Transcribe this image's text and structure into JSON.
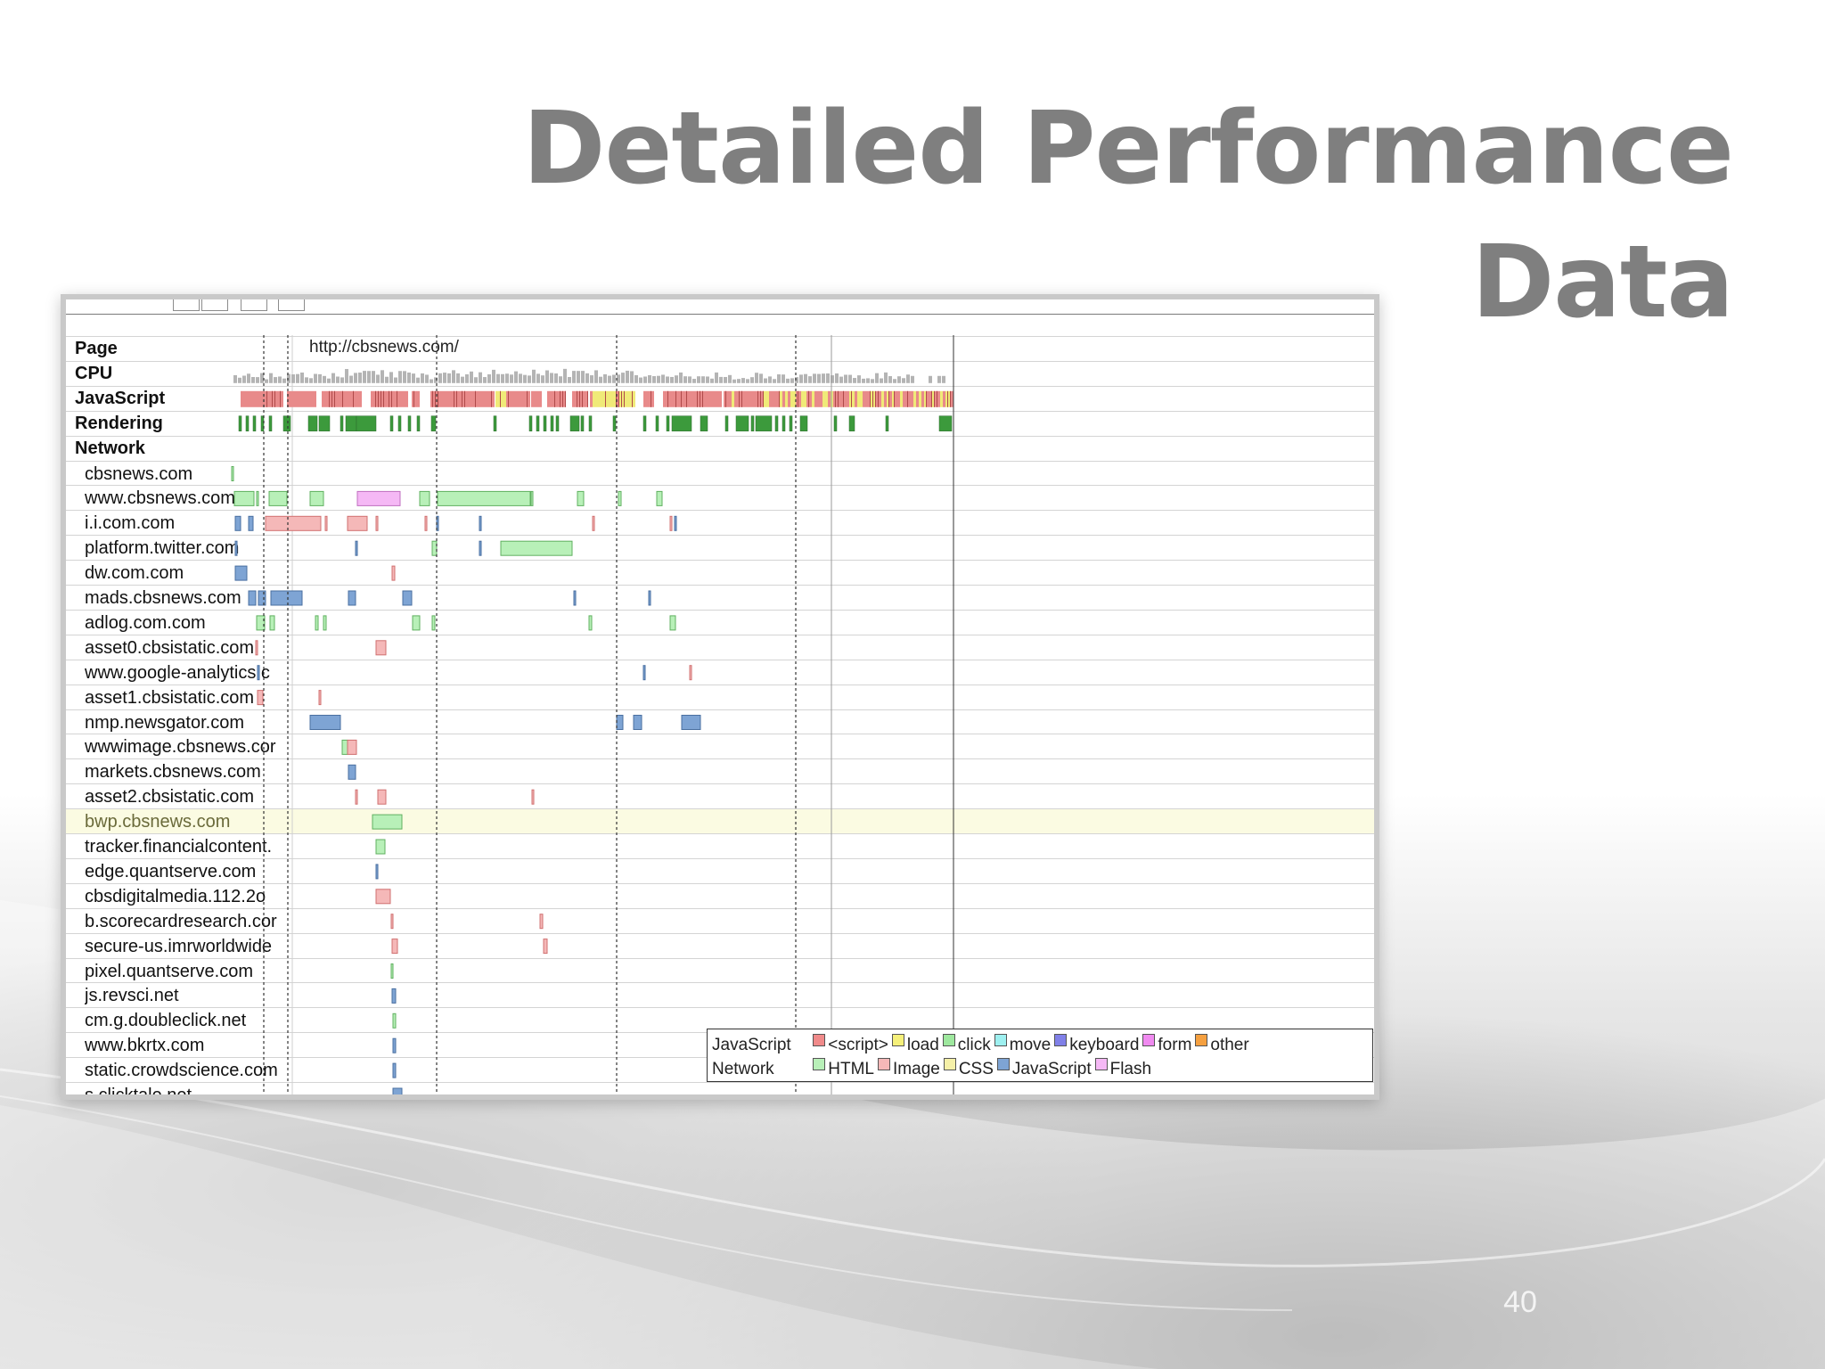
{
  "slide": {
    "title_line1": "Detailed Performance",
    "title_line2": "Data",
    "number": "40"
  },
  "timeline": {
    "page_url": "http://cbsnews.com/",
    "top_rows": [
      "Page",
      "CPU",
      "JavaScript",
      "Rendering",
      "Network"
    ],
    "hosts": [
      {
        "name": "cbsnews.com",
        "bars": [
          {
            "t": 260,
            "d": 2,
            "k": "html"
          }
        ]
      },
      {
        "name": "www.cbsnews.com",
        "bars": [
          {
            "t": 263,
            "d": 22,
            "k": "html"
          },
          {
            "t": 288,
            "d": 2,
            "k": "html"
          },
          {
            "t": 302,
            "d": 20,
            "k": "html"
          },
          {
            "t": 348,
            "d": 15,
            "k": "html"
          },
          {
            "t": 401,
            "d": 48,
            "k": "flash"
          },
          {
            "t": 471,
            "d": 11,
            "k": "html"
          },
          {
            "t": 491,
            "d": 104,
            "k": "html"
          },
          {
            "t": 596,
            "d": 2,
            "k": "html"
          },
          {
            "t": 648,
            "d": 7,
            "k": "html"
          },
          {
            "t": 694,
            "d": 3,
            "k": "html"
          },
          {
            "t": 737,
            "d": 6,
            "k": "html"
          }
        ]
      },
      {
        "name": "i.i.com.com",
        "bars": [
          {
            "t": 264,
            "d": 6,
            "k": "js"
          },
          {
            "t": 279,
            "d": 5,
            "k": "js"
          },
          {
            "t": 298,
            "d": 62,
            "k": "image"
          },
          {
            "t": 365,
            "d": 2,
            "k": "image"
          },
          {
            "t": 390,
            "d": 22,
            "k": "image"
          },
          {
            "t": 422,
            "d": 2,
            "k": "image"
          },
          {
            "t": 477,
            "d": 2,
            "k": "image"
          },
          {
            "t": 490,
            "d": 2,
            "k": "js"
          },
          {
            "t": 538,
            "d": 2,
            "k": "js"
          },
          {
            "t": 665,
            "d": 2,
            "k": "image"
          },
          {
            "t": 752,
            "d": 2,
            "k": "image"
          },
          {
            "t": 757,
            "d": 2,
            "k": "js"
          }
        ]
      },
      {
        "name": "platform.twitter.com",
        "bars": [
          {
            "t": 264,
            "d": 2,
            "k": "js"
          },
          {
            "t": 399,
            "d": 2,
            "k": "js"
          },
          {
            "t": 485,
            "d": 5,
            "k": "html"
          },
          {
            "t": 538,
            "d": 2,
            "k": "js"
          },
          {
            "t": 562,
            "d": 80,
            "k": "html"
          }
        ]
      },
      {
        "name": "dw.com.com",
        "bars": [
          {
            "t": 264,
            "d": 13,
            "k": "js"
          },
          {
            "t": 440,
            "d": 3,
            "k": "image"
          }
        ]
      },
      {
        "name": "mads.cbsnews.com",
        "bars": [
          {
            "t": 279,
            "d": 8,
            "k": "js"
          },
          {
            "t": 290,
            "d": 8,
            "k": "js"
          },
          {
            "t": 304,
            "d": 35,
            "k": "js"
          },
          {
            "t": 391,
            "d": 8,
            "k": "js"
          },
          {
            "t": 452,
            "d": 10,
            "k": "js"
          },
          {
            "t": 644,
            "d": 2,
            "k": "js"
          },
          {
            "t": 728,
            "d": 2,
            "k": "js"
          }
        ]
      },
      {
        "name": "adlog.com.com",
        "bars": [
          {
            "t": 288,
            "d": 9,
            "k": "html"
          },
          {
            "t": 303,
            "d": 5,
            "k": "html"
          },
          {
            "t": 354,
            "d": 3,
            "k": "html"
          },
          {
            "t": 363,
            "d": 3,
            "k": "html"
          },
          {
            "t": 463,
            "d": 8,
            "k": "html"
          },
          {
            "t": 485,
            "d": 3,
            "k": "html"
          },
          {
            "t": 661,
            "d": 3,
            "k": "html"
          },
          {
            "t": 752,
            "d": 6,
            "k": "html"
          }
        ]
      },
      {
        "name": "asset0.cbsistatic.com",
        "bars": [
          {
            "t": 287,
            "d": 2,
            "k": "image"
          },
          {
            "t": 422,
            "d": 11,
            "k": "image"
          }
        ]
      },
      {
        "name": "www.google-analytics.c",
        "bars": [
          {
            "t": 289,
            "d": 2,
            "k": "js"
          },
          {
            "t": 722,
            "d": 2,
            "k": "js"
          },
          {
            "t": 774,
            "d": 2,
            "k": "image"
          }
        ]
      },
      {
        "name": "asset1.cbsistatic.com",
        "bars": [
          {
            "t": 289,
            "d": 6,
            "k": "image"
          },
          {
            "t": 358,
            "d": 2,
            "k": "image"
          }
        ]
      },
      {
        "name": "nmp.newsgator.com",
        "bars": [
          {
            "t": 348,
            "d": 34,
            "k": "js"
          },
          {
            "t": 692,
            "d": 7,
            "k": "js"
          },
          {
            "t": 711,
            "d": 9,
            "k": "js"
          },
          {
            "t": 765,
            "d": 21,
            "k": "js"
          }
        ]
      },
      {
        "name": "wwwimage.cbsnews.cor",
        "bars": [
          {
            "t": 384,
            "d": 6,
            "k": "html"
          },
          {
            "t": 390,
            "d": 10,
            "k": "image"
          }
        ]
      },
      {
        "name": "markets.cbsnews.com",
        "bars": [
          {
            "t": 391,
            "d": 8,
            "k": "js"
          }
        ]
      },
      {
        "name": "asset2.cbsistatic.com",
        "bars": [
          {
            "t": 399,
            "d": 2,
            "k": "image"
          },
          {
            "t": 424,
            "d": 9,
            "k": "image"
          },
          {
            "t": 597,
            "d": 2,
            "k": "image"
          }
        ]
      },
      {
        "name": "bwp.cbsnews.com",
        "highlight": true,
        "bars": [
          {
            "t": 418,
            "d": 33,
            "k": "html"
          }
        ]
      },
      {
        "name": "tracker.financialcontent.",
        "bars": [
          {
            "t": 422,
            "d": 10,
            "k": "html"
          }
        ]
      },
      {
        "name": "edge.quantserve.com",
        "bars": [
          {
            "t": 422,
            "d": 2,
            "k": "js"
          }
        ]
      },
      {
        "name": "cbsdigitalmedia.112.2o",
        "bars": [
          {
            "t": 422,
            "d": 16,
            "k": "image"
          }
        ]
      },
      {
        "name": "b.scorecardresearch.cor",
        "bars": [
          {
            "t": 439,
            "d": 2,
            "k": "image"
          },
          {
            "t": 606,
            "d": 3,
            "k": "image"
          }
        ]
      },
      {
        "name": "secure-us.imrworldwide",
        "bars": [
          {
            "t": 440,
            "d": 6,
            "k": "image"
          },
          {
            "t": 610,
            "d": 4,
            "k": "image"
          }
        ]
      },
      {
        "name": "pixel.quantserve.com",
        "bars": [
          {
            "t": 439,
            "d": 2,
            "k": "html"
          }
        ]
      },
      {
        "name": "js.revsci.net",
        "bars": [
          {
            "t": 440,
            "d": 4,
            "k": "js"
          }
        ]
      },
      {
        "name": "cm.g.doubleclick.net",
        "bars": [
          {
            "t": 441,
            "d": 3,
            "k": "html"
          }
        ]
      },
      {
        "name": "www.bkrtx.com",
        "bars": [
          {
            "t": 441,
            "d": 3,
            "k": "js"
          }
        ]
      },
      {
        "name": "static.crowdscience.com",
        "bars": [
          {
            "t": 441,
            "d": 3,
            "k": "js"
          }
        ]
      },
      {
        "name": "s.clicktale.net",
        "bars": [
          {
            "t": 441,
            "d": 10,
            "k": "js"
          }
        ]
      }
    ],
    "event_markers": [
      296,
      323,
      490,
      692,
      893
    ],
    "solid_markers": [
      933,
      1070
    ],
    "legend": {
      "js_heading": "JavaScript",
      "net_heading": "Network",
      "js_items": [
        {
          "label": "<script>",
          "color": "#f08a8a"
        },
        {
          "label": "load",
          "color": "#f5f07a"
        },
        {
          "label": "click",
          "color": "#9ee89e"
        },
        {
          "label": "move",
          "color": "#9ef0f0"
        },
        {
          "label": "keyboard",
          "color": "#8080e8"
        },
        {
          "label": "form",
          "color": "#f08af0"
        },
        {
          "label": "other",
          "color": "#f5a040"
        }
      ],
      "net_items": [
        {
          "label": "HTML",
          "color": "#b8f0b8"
        },
        {
          "label": "Image",
          "color": "#f5b8b8"
        },
        {
          "label": "CSS",
          "color": "#f5f0a8"
        },
        {
          "label": "JavaScript",
          "color": "#7ea4d4"
        },
        {
          "label": "Flash",
          "color": "#f5b8f5"
        }
      ]
    },
    "colors": {
      "html": "#b8f0b8",
      "image": "#f5b8b8",
      "css": "#f5f0a8",
      "js": "#7ea4d4",
      "flash": "#f5b8f5",
      "script": "#e88a8a",
      "load": "#f0ea78",
      "render": "#3c9a3c",
      "cpu": "#b4b4b4",
      "highlight_row": "#fbfbe2",
      "highlight_text": "#6a6a3a"
    }
  }
}
